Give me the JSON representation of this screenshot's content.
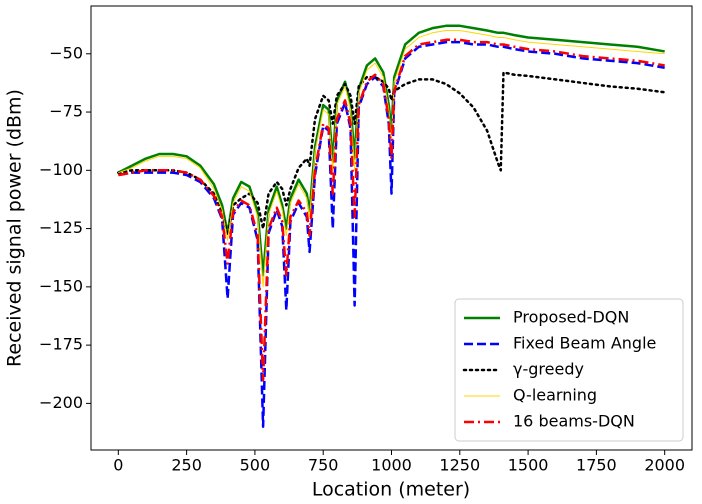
{
  "chart_data": {
    "type": "line",
    "xlabel": "Location (meter)",
    "ylabel": "Received signal power (dBm)",
    "x": [
      0,
      50,
      100,
      150,
      200,
      250,
      300,
      350,
      380,
      400,
      420,
      450,
      480,
      510,
      530,
      550,
      580,
      600,
      615,
      630,
      660,
      690,
      700,
      720,
      750,
      770,
      785,
      800,
      830,
      850,
      865,
      880,
      910,
      940,
      970,
      990,
      1000,
      1010,
      1050,
      1100,
      1150,
      1200,
      1250,
      1300,
      1350,
      1390,
      1400,
      1410,
      1450,
      1500,
      1600,
      1700,
      1800,
      1900,
      2000
    ],
    "series": [
      {
        "name": "Proposed-DQN",
        "color": "#008000",
        "linestyle": "solid",
        "linewidth": 2.5,
        "values": [
          -101,
          -98,
          -95,
          -93,
          -93,
          -94,
          -98,
          -106,
          -115,
          -127,
          -112,
          -105,
          -107,
          -118,
          -145,
          -117,
          -107,
          -115,
          -125,
          -112,
          -104,
          -110,
          -118,
          -90,
          -72,
          -74,
          -96,
          -70,
          -62,
          -72,
          -95,
          -65,
          -55,
          -52,
          -58,
          -72,
          -83,
          -60,
          -46,
          -41,
          -39,
          -38,
          -38,
          -39,
          -40,
          -41,
          -41,
          -41,
          -42,
          -43,
          -44,
          -45,
          -46,
          -47,
          -49
        ]
      },
      {
        "name": "Fixed Beam Angle",
        "color": "#0000ff",
        "linestyle": "dashed",
        "linewidth": 2.5,
        "values": [
          -102,
          -101,
          -101,
          -101,
          -101,
          -102,
          -105,
          -112,
          -121,
          -155,
          -119,
          -114,
          -116,
          -130,
          -210,
          -127,
          -117,
          -124,
          -160,
          -122,
          -114,
          -120,
          -135,
          -102,
          -81,
          -83,
          -125,
          -80,
          -71,
          -82,
          -158,
          -73,
          -63,
          -60,
          -64,
          -80,
          -110,
          -67,
          -52,
          -47,
          -46,
          -45,
          -45,
          -46,
          -46,
          -47,
          -47,
          -47,
          -48,
          -49,
          -50,
          -52,
          -53,
          -54,
          -56
        ]
      },
      {
        "name": "γ-greedy",
        "color": "#000000",
        "linestyle": "dotted",
        "linewidth": 2.5,
        "values": [
          -101,
          -100,
          -100,
          -100,
          -100,
          -101,
          -104,
          -110,
          -118,
          -128,
          -115,
          -112,
          -110,
          -114,
          -125,
          -110,
          -105,
          -108,
          -115,
          -108,
          -99,
          -95,
          -98,
          -78,
          -68,
          -70,
          -80,
          -68,
          -63,
          -68,
          -80,
          -64,
          -60,
          -60,
          -62,
          -65,
          -70,
          -66,
          -63,
          -61,
          -61,
          -63,
          -67,
          -73,
          -83,
          -97,
          -100,
          -58,
          -59,
          -59.5,
          -61,
          -62.5,
          -64,
          -65,
          -66.5
        ]
      },
      {
        "name": "Q-learning",
        "color": "#ffd700",
        "linestyle": "solid",
        "linewidth": 1,
        "values": [
          -101,
          -99,
          -96,
          -94,
          -94,
          -95,
          -99,
          -108,
          -117,
          -130,
          -114,
          -107,
          -109,
          -120,
          -150,
          -119,
          -109,
          -117,
          -128,
          -114,
          -106,
          -112,
          -120,
          -92,
          -74,
          -76,
          -100,
          -72,
          -64,
          -74,
          -100,
          -67,
          -57,
          -54,
          -60,
          -74,
          -86,
          -62,
          -48,
          -43,
          -41,
          -40,
          -40,
          -41,
          -42,
          -43,
          -43,
          -43,
          -44,
          -45,
          -46,
          -47,
          -48,
          -49,
          -50
        ]
      },
      {
        "name": "16 beams-DQN",
        "color": "#ff0000",
        "linestyle": "dashdot",
        "linewidth": 2.5,
        "values": [
          -102,
          -101,
          -100,
          -100,
          -100,
          -101,
          -104,
          -111,
          -120,
          -140,
          -118,
          -113,
          -115,
          -128,
          -190,
          -125,
          -116,
          -122,
          -145,
          -120,
          -113,
          -118,
          -128,
          -100,
          -80,
          -82,
          -110,
          -78,
          -70,
          -80,
          -120,
          -72,
          -62,
          -59,
          -63,
          -78,
          -95,
          -66,
          -51,
          -46,
          -45,
          -44,
          -44,
          -45,
          -45,
          -46,
          -46,
          -46,
          -47,
          -48,
          -49,
          -51,
          -52,
          -53,
          -55
        ]
      }
    ],
    "xlim": [
      -100,
      2100
    ],
    "ylim": [
      -220,
      -29.5
    ],
    "xticks": [
      0,
      250,
      500,
      750,
      1000,
      1250,
      1500,
      1750,
      2000
    ],
    "yticks": [
      {
        "value": -200,
        "label": "−200"
      },
      {
        "value": -175,
        "label": "−175"
      },
      {
        "value": -150,
        "label": "−150"
      },
      {
        "value": -125,
        "label": "−125"
      },
      {
        "value": -100,
        "label": "−100"
      },
      {
        "value": -75,
        "label": "−75"
      },
      {
        "value": -50,
        "label": "−50"
      }
    ],
    "grid": false,
    "legend": "lower right"
  }
}
